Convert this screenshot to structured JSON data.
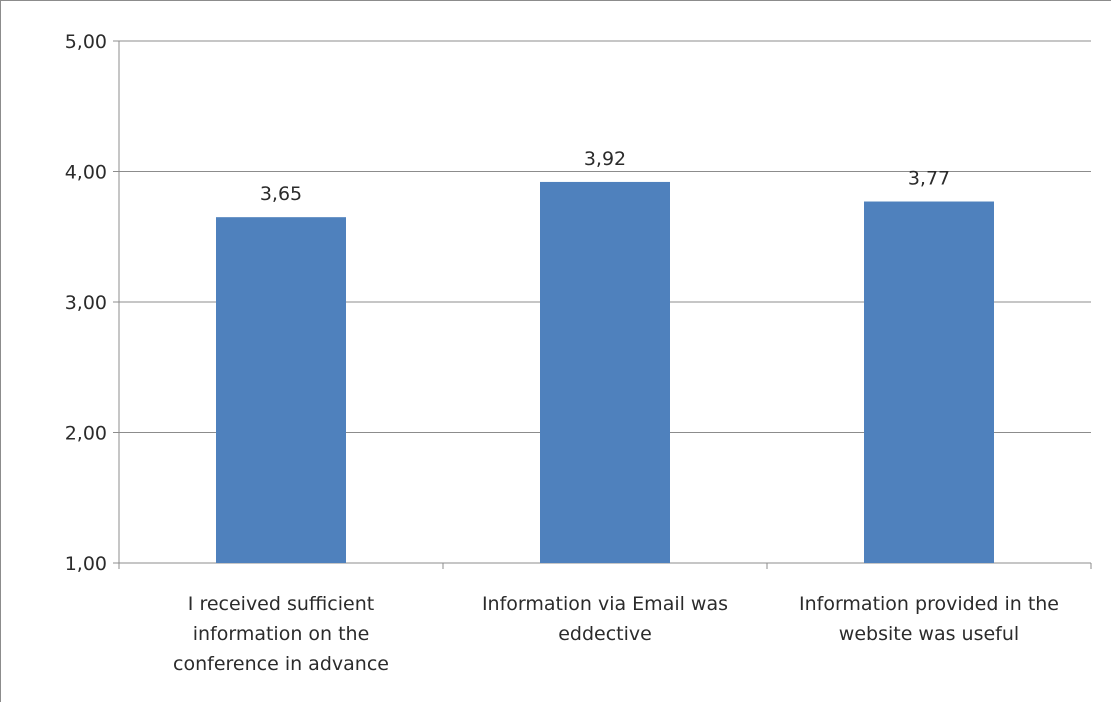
{
  "chart_data": {
    "type": "bar",
    "title": "",
    "xlabel": "",
    "ylabel": "",
    "categories": [
      [
        "I received sufficient",
        "information on the",
        "conference in advance"
      ],
      [
        "Information via Email was",
        "eddective"
      ],
      [
        "Information provided in the",
        "website was useful"
      ]
    ],
    "values": [
      3.65,
      3.92,
      3.77
    ],
    "value_labels": [
      "3,65",
      "3,92",
      "3,77"
    ],
    "ylim": [
      1,
      5
    ],
    "yticks": [
      1,
      2,
      3,
      4,
      5
    ],
    "ytick_labels": [
      "1,00",
      "2,00",
      "3,00",
      "4,00",
      "5,00"
    ],
    "grid": true,
    "legend": false,
    "bar_color": "#4f81bd",
    "grid_color": "#8c8c8c"
  }
}
